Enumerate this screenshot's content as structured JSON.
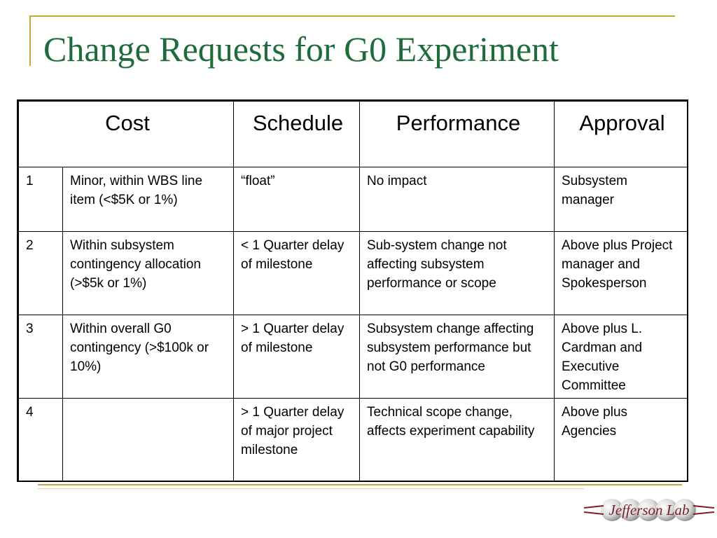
{
  "slide": {
    "title": "Change Requests for G0 Experiment"
  },
  "table": {
    "headers": {
      "cost": "Cost",
      "schedule": "Schedule",
      "performance": "Performance",
      "approval": "Approval"
    },
    "rows": [
      {
        "level": "1",
        "cost": "Minor, within WBS line item (<$5K or 1%)",
        "schedule": "“float”",
        "performance": "No impact",
        "approval": "Subsystem manager"
      },
      {
        "level": "2",
        "cost": "Within subsystem contingency allocation (>$5k or 1%)",
        "schedule": "< 1 Quarter delay of milestone",
        "performance": "Sub-system change not affecting subsystem performance or scope",
        "approval": "Above plus Project manager and Spokesperson"
      },
      {
        "level": "3",
        "cost": "Within overall G0 contingency (>$100k or 10%)",
        "schedule": "> 1 Quarter delay of milestone",
        "performance": "Subsystem change affecting subsystem performance but not G0 performance",
        "approval": "Above plus L. Cardman and Executive Committee"
      },
      {
        "level": "4",
        "cost": "",
        "schedule": "> 1 Quarter delay of major project milestone",
        "performance": "Technical scope change, affects experiment capability",
        "approval": "Above plus Agencies"
      }
    ]
  },
  "logo": {
    "text": "Jefferson Lab",
    "icon": "jefferson-lab-logo",
    "color": "#7a1f2b"
  },
  "colors": {
    "title": "#1e6b3c",
    "accent": "#c9a53a"
  }
}
